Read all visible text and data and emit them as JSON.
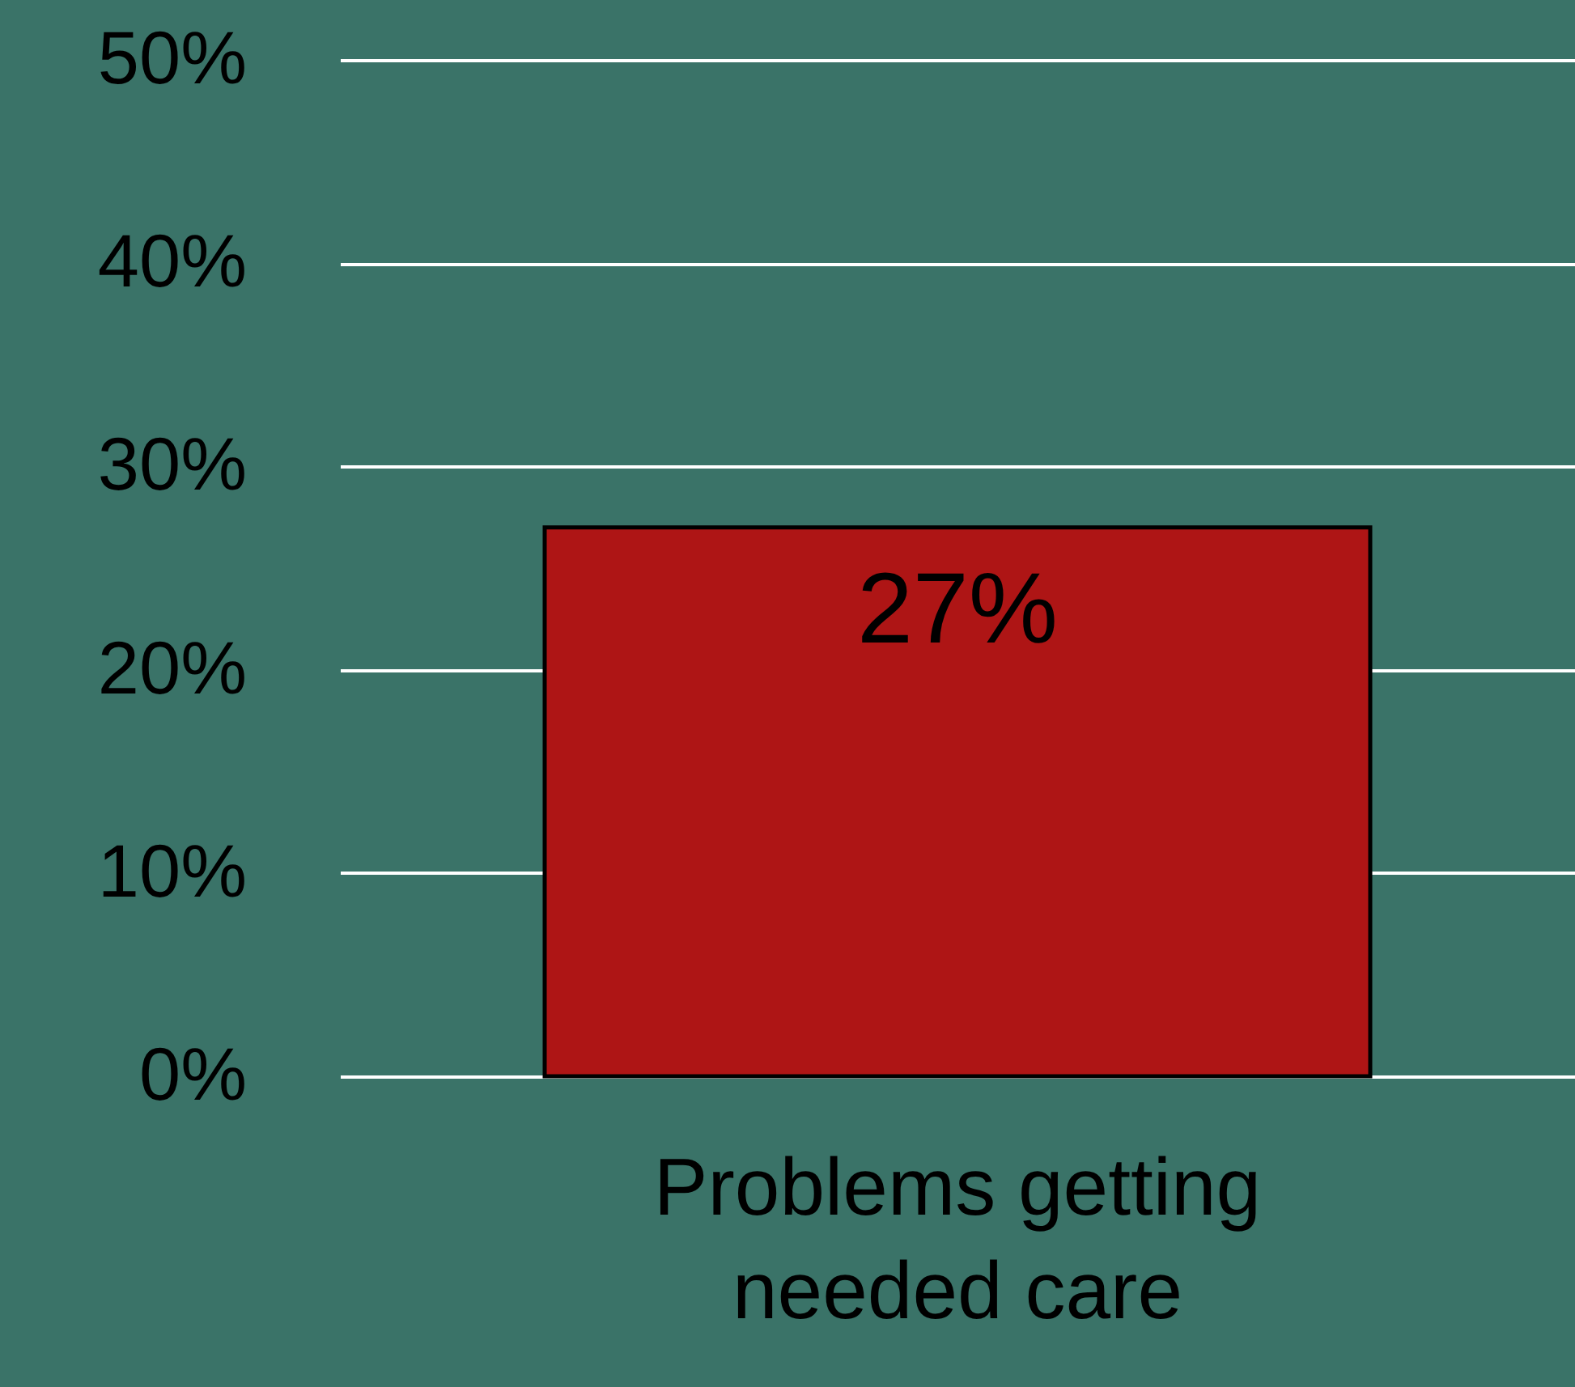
{
  "chart_data": {
    "type": "bar",
    "categories": [
      "Problems getting\nneeded care"
    ],
    "series": [
      {
        "color": "#ae1515",
        "values": [
          27
        ]
      }
    ],
    "value_labels": [
      "27%"
    ],
    "ylim": [
      0,
      50
    ],
    "yticks": [
      {
        "value": 0,
        "label": "0%"
      },
      {
        "value": 10,
        "label": "10%"
      },
      {
        "value": 20,
        "label": "20%"
      },
      {
        "value": 30,
        "label": "30%"
      },
      {
        "value": 40,
        "label": "40%"
      },
      {
        "value": 50,
        "label": "50%"
      }
    ],
    "grid": "y"
  }
}
